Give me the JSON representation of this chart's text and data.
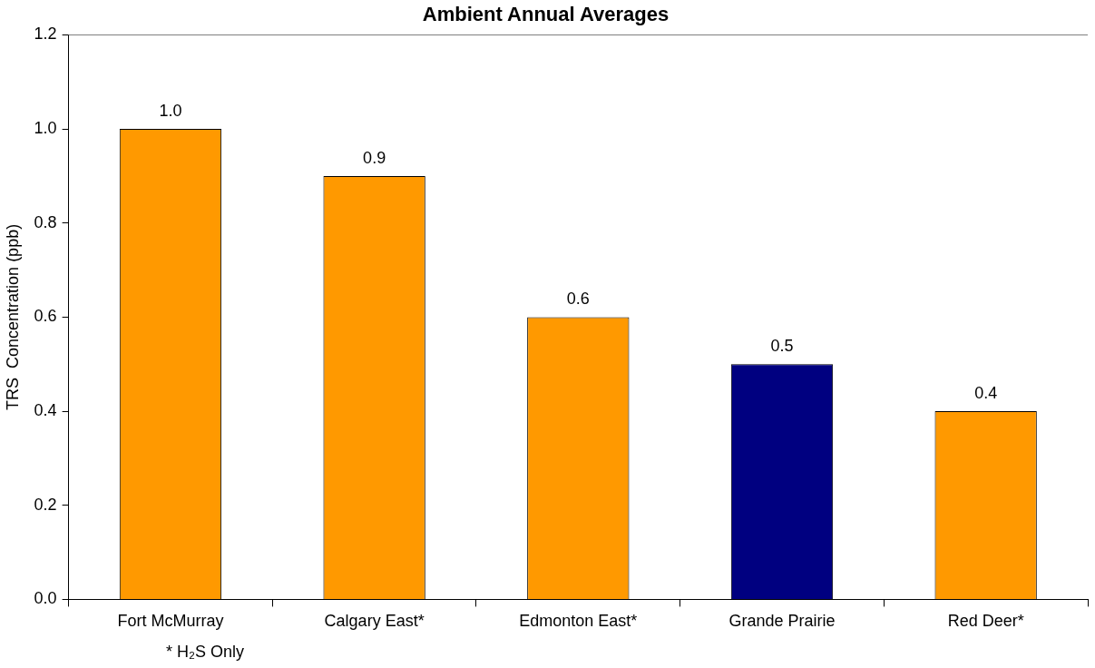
{
  "chart_data": {
    "type": "bar",
    "title": "Ambient Annual Averages",
    "ylabel": "TRS  Concentration (ppb)",
    "categories": [
      "Fort McMurray",
      "Calgary East*",
      "Edmonton East*",
      "Grande Prairie",
      "Red Deer*"
    ],
    "values": [
      1.0,
      0.9,
      0.6,
      0.5,
      0.4
    ],
    "colors": [
      "#ff9900",
      "#ff9900",
      "#ff9900",
      "#000080",
      "#ff9900"
    ],
    "value_labels": [
      "1.0",
      "0.9",
      "0.6",
      "0.5",
      "0.4"
    ],
    "ylim": [
      0,
      1.2
    ],
    "yticks": [
      {
        "value": 0,
        "label": "0.0"
      },
      0.2,
      0.4,
      0.6,
      0.8,
      {
        "value": 1,
        "label": "1.0"
      },
      1.2
    ],
    "annotations": [
      "* H₂S Only"
    ]
  }
}
